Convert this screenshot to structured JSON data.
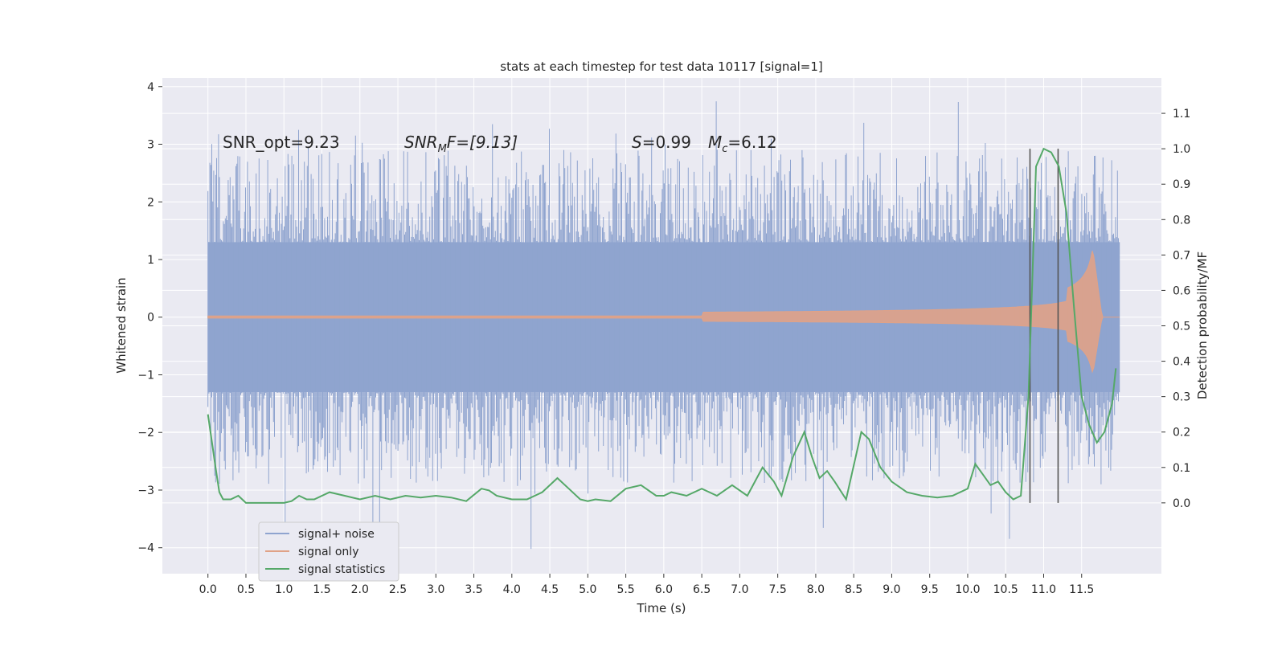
{
  "chart_data": {
    "type": "line",
    "title": "stats at each timestep for test data 10117 [signal=1]",
    "xlabel": "Time (s)",
    "ylabel_left": "Whitened strain",
    "ylabel_right": "Detection probability/MF",
    "xlim": [
      -0.6,
      12.55
    ],
    "ylim_left": [
      -4.45,
      4.15
    ],
    "ylim_right": [
      -0.2,
      1.2
    ],
    "xticks": [
      "0.0",
      "0.5",
      "1.0",
      "1.5",
      "2.0",
      "2.5",
      "3.0",
      "3.5",
      "4.0",
      "4.5",
      "5.0",
      "5.5",
      "6.0",
      "6.5",
      "7.0",
      "7.5",
      "8.0",
      "8.5",
      "9.0",
      "9.5",
      "10.0",
      "10.5",
      "11.0",
      "11.5"
    ],
    "yticks_left": [
      "4",
      "3",
      "2",
      "1",
      "0",
      "−1",
      "−2",
      "−3",
      "−4"
    ],
    "yticks_right": [
      "1.1",
      "1.0",
      "0.9",
      "0.8",
      "0.7",
      "0.6",
      "0.5",
      "0.4",
      "0.3",
      "0.2",
      "0.1",
      "0.0"
    ],
    "grid": true,
    "legend_position": "lower-left",
    "annotations": [
      {
        "id": "snr_opt",
        "text": "SNR_opt=9.23",
        "x": 0.2,
        "y": 3.0
      },
      {
        "id": "snr_mf",
        "text_prefix": "SNR",
        "text_sub": "M",
        "text_suffix": "F=[9.13]",
        "x": 2.6,
        "y": 3.0
      },
      {
        "id": "s_val",
        "text_prefix": "S",
        "text_suffix": "=0.99",
        "x": 5.6,
        "y": 3.0
      },
      {
        "id": "mc_val",
        "text_prefix": "M",
        "text_sub": "c",
        "text_suffix": "=6.12",
        "x": 6.6,
        "y": 3.0
      }
    ],
    "vlines": [
      10.82,
      11.19
    ],
    "vline_range": [
      0.0,
      1.0
    ],
    "series": [
      {
        "name": "signal+ noise",
        "color": "#8fa4cf",
        "axis": "left",
        "band_range": [
          0.0,
          12.0
        ],
        "typical_amplitude": 1.3,
        "peak_range": [
          -4.1,
          3.8
        ]
      },
      {
        "name": "signal only",
        "color": "#e0a287",
        "axis": "left",
        "chirp_peak_time": 11.65,
        "max_amplitude": 1.15,
        "min_amplitude": -0.95,
        "end_time": 12.0
      },
      {
        "name": "signal statistics",
        "color": "#55a868",
        "axis": "right",
        "x": [
          0.0,
          0.1,
          0.15,
          0.2,
          0.3,
          0.4,
          0.5,
          0.6,
          0.8,
          1.0,
          1.1,
          1.2,
          1.3,
          1.4,
          1.6,
          1.8,
          2.0,
          2.2,
          2.4,
          2.6,
          2.8,
          3.0,
          3.2,
          3.4,
          3.6,
          3.7,
          3.8,
          4.0,
          4.2,
          4.4,
          4.6,
          4.75,
          4.9,
          5.0,
          5.1,
          5.3,
          5.5,
          5.7,
          5.9,
          6.0,
          6.1,
          6.3,
          6.5,
          6.7,
          6.9,
          7.1,
          7.3,
          7.45,
          7.55,
          7.7,
          7.85,
          7.95,
          8.05,
          8.15,
          8.25,
          8.4,
          8.6,
          8.7,
          8.85,
          9.0,
          9.2,
          9.4,
          9.6,
          9.8,
          10.0,
          10.1,
          10.2,
          10.3,
          10.4,
          10.5,
          10.6,
          10.7,
          10.8,
          10.9,
          11.0,
          11.1,
          11.2,
          11.3,
          11.4,
          11.5,
          11.6,
          11.7,
          11.8,
          11.9,
          11.95
        ],
        "y": [
          0.25,
          0.1,
          0.03,
          0.01,
          0.01,
          0.02,
          0.0,
          0.0,
          0.0,
          0.0,
          0.005,
          0.02,
          0.01,
          0.01,
          0.03,
          0.02,
          0.01,
          0.02,
          0.01,
          0.02,
          0.015,
          0.02,
          0.015,
          0.005,
          0.04,
          0.035,
          0.02,
          0.01,
          0.01,
          0.03,
          0.07,
          0.04,
          0.01,
          0.005,
          0.01,
          0.005,
          0.04,
          0.05,
          0.02,
          0.02,
          0.03,
          0.02,
          0.04,
          0.02,
          0.05,
          0.02,
          0.1,
          0.06,
          0.02,
          0.13,
          0.2,
          0.13,
          0.07,
          0.09,
          0.06,
          0.01,
          0.2,
          0.18,
          0.1,
          0.06,
          0.03,
          0.02,
          0.015,
          0.02,
          0.04,
          0.11,
          0.08,
          0.05,
          0.06,
          0.03,
          0.01,
          0.02,
          0.3,
          0.95,
          1.0,
          0.99,
          0.95,
          0.82,
          0.55,
          0.3,
          0.22,
          0.17,
          0.2,
          0.28,
          0.38
        ]
      }
    ]
  }
}
